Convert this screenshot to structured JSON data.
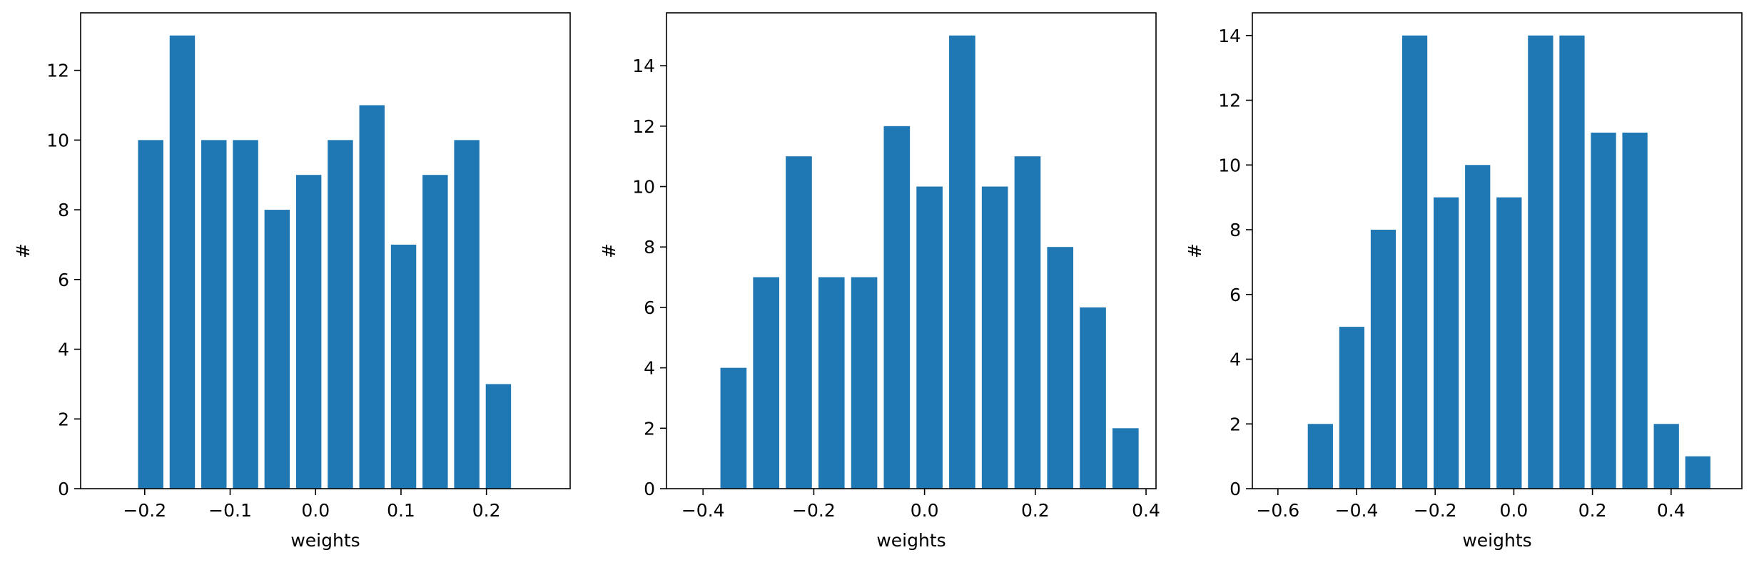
{
  "chart_data": [
    {
      "type": "bar",
      "xlabel": "weights",
      "ylabel": "#",
      "xlim": [
        -0.275,
        0.298
      ],
      "ylim": [
        0,
        13.65
      ],
      "grid": false,
      "bar_color": "#1f77b4",
      "bar_width": 0.0296,
      "x": [
        -0.193,
        -0.156,
        -0.119,
        -0.082,
        -0.045,
        -0.008,
        0.029,
        0.066,
        0.103,
        0.14,
        0.177,
        0.214
      ],
      "values": [
        10,
        13,
        10,
        10,
        8,
        9,
        10,
        11,
        7,
        9,
        10,
        3
      ],
      "xticks": [
        -0.2,
        -0.1,
        0.0,
        0.1,
        0.2
      ],
      "xtick_labels": [
        "−0.2",
        "−0.1",
        "0.0",
        "0.1",
        "0.2"
      ],
      "yticks": [
        0,
        2,
        4,
        6,
        8,
        10,
        12
      ],
      "ytick_labels": [
        "0",
        "2",
        "4",
        "6",
        "8",
        "10",
        "12"
      ]
    },
    {
      "type": "bar",
      "xlabel": "weights",
      "ylabel": "#",
      "xlim": [
        -0.466,
        0.418
      ],
      "ylim": [
        0,
        15.75
      ],
      "grid": false,
      "bar_color": "#1f77b4",
      "bar_width": 0.0472,
      "x": [
        -0.345,
        -0.286,
        -0.227,
        -0.168,
        -0.109,
        -0.05,
        0.009,
        0.068,
        0.127,
        0.186,
        0.245,
        0.304,
        0.363
      ],
      "values": [
        4,
        7,
        11,
        7,
        7,
        12,
        10,
        15,
        10,
        11,
        8,
        6,
        2
      ],
      "xticks": [
        -0.4,
        -0.2,
        0.0,
        0.2,
        0.4
      ],
      "xtick_labels": [
        "−0.4",
        "−0.2",
        "0.0",
        "0.2",
        "0.4"
      ],
      "yticks": [
        0,
        2,
        4,
        6,
        8,
        10,
        12,
        14
      ],
      "ytick_labels": [
        "0",
        "2",
        "4",
        "6",
        "8",
        "10",
        "12",
        "14"
      ]
    },
    {
      "type": "bar",
      "xlabel": "weights",
      "ylabel": "#",
      "xlim": [
        -0.665,
        0.58
      ],
      "ylim": [
        0,
        14.7
      ],
      "grid": false,
      "bar_color": "#1f77b4",
      "bar_width": 0.064,
      "x": [
        -0.492,
        -0.412,
        -0.332,
        -0.252,
        -0.172,
        -0.092,
        -0.012,
        0.068,
        0.148,
        0.228,
        0.308,
        0.388,
        0.468
      ],
      "values": [
        2,
        5,
        8,
        14,
        9,
        10,
        9,
        14,
        14,
        11,
        11,
        2,
        1
      ],
      "xticks": [
        -0.6,
        -0.4,
        -0.2,
        0.0,
        0.2,
        0.4
      ],
      "xtick_labels": [
        "−0.6",
        "−0.4",
        "−0.2",
        "0.0",
        "0.2",
        "0.4"
      ],
      "yticks": [
        0,
        2,
        4,
        6,
        8,
        10,
        12,
        14
      ],
      "ytick_labels": [
        "0",
        "2",
        "4",
        "6",
        "8",
        "10",
        "12",
        "14"
      ]
    }
  ]
}
